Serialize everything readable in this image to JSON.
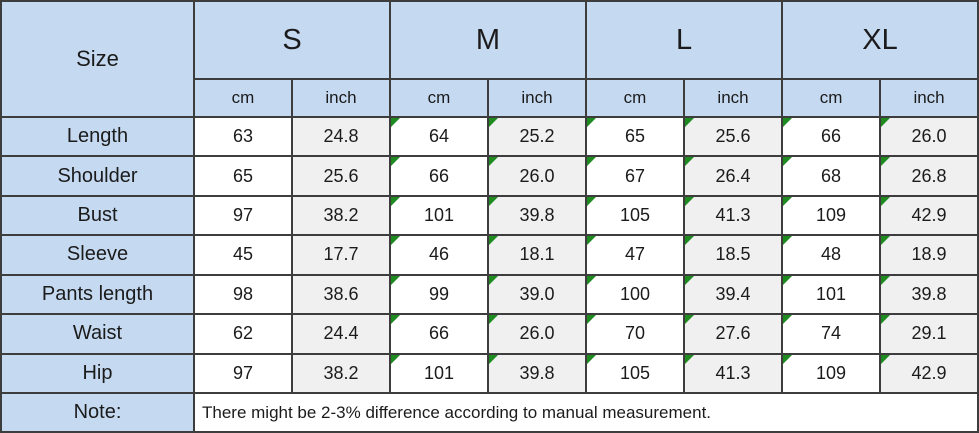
{
  "table": {
    "corner_label": "Size",
    "size_groups": [
      "S",
      "M",
      "L",
      "XL"
    ],
    "unit_labels": [
      "cm",
      "inch"
    ],
    "measurement_rows": [
      {
        "label": "Length",
        "values": [
          "63",
          "24.8",
          "64",
          "25.2",
          "65",
          "25.6",
          "66",
          "26.0"
        ]
      },
      {
        "label": "Shoulder",
        "values": [
          "65",
          "25.6",
          "66",
          "26.0",
          "67",
          "26.4",
          "68",
          "26.8"
        ]
      },
      {
        "label": "Bust",
        "values": [
          "97",
          "38.2",
          "101",
          "39.8",
          "105",
          "41.3",
          "109",
          "42.9"
        ]
      },
      {
        "label": "Sleeve",
        "values": [
          "45",
          "17.7",
          "46",
          "18.1",
          "47",
          "18.5",
          "48",
          "18.9"
        ]
      },
      {
        "label": "Pants length",
        "values": [
          "98",
          "38.6",
          "99",
          "39.0",
          "100",
          "39.4",
          "101",
          "39.8"
        ]
      },
      {
        "label": "Waist",
        "values": [
          "62",
          "24.4",
          "66",
          "26.0",
          "70",
          "27.6",
          "74",
          "29.1"
        ]
      },
      {
        "label": "Hip",
        "values": [
          "97",
          "38.2",
          "101",
          "39.8",
          "105",
          "41.3",
          "109",
          "42.9"
        ]
      }
    ],
    "error_indicator_value_indexes": [
      2,
      3,
      4,
      5,
      6,
      7
    ],
    "note_label": "Note:",
    "note_text": "There might be 2-3% difference according to manual measurement."
  },
  "colors": {
    "header_fill": "#c5d9f1",
    "inch_cell_fill": "#f0f0f0",
    "cm_cell_fill": "#ffffff",
    "grid_border": "#3d3d3d",
    "text": "#1b1b1b",
    "indicator_green": "#1f8a1f"
  }
}
